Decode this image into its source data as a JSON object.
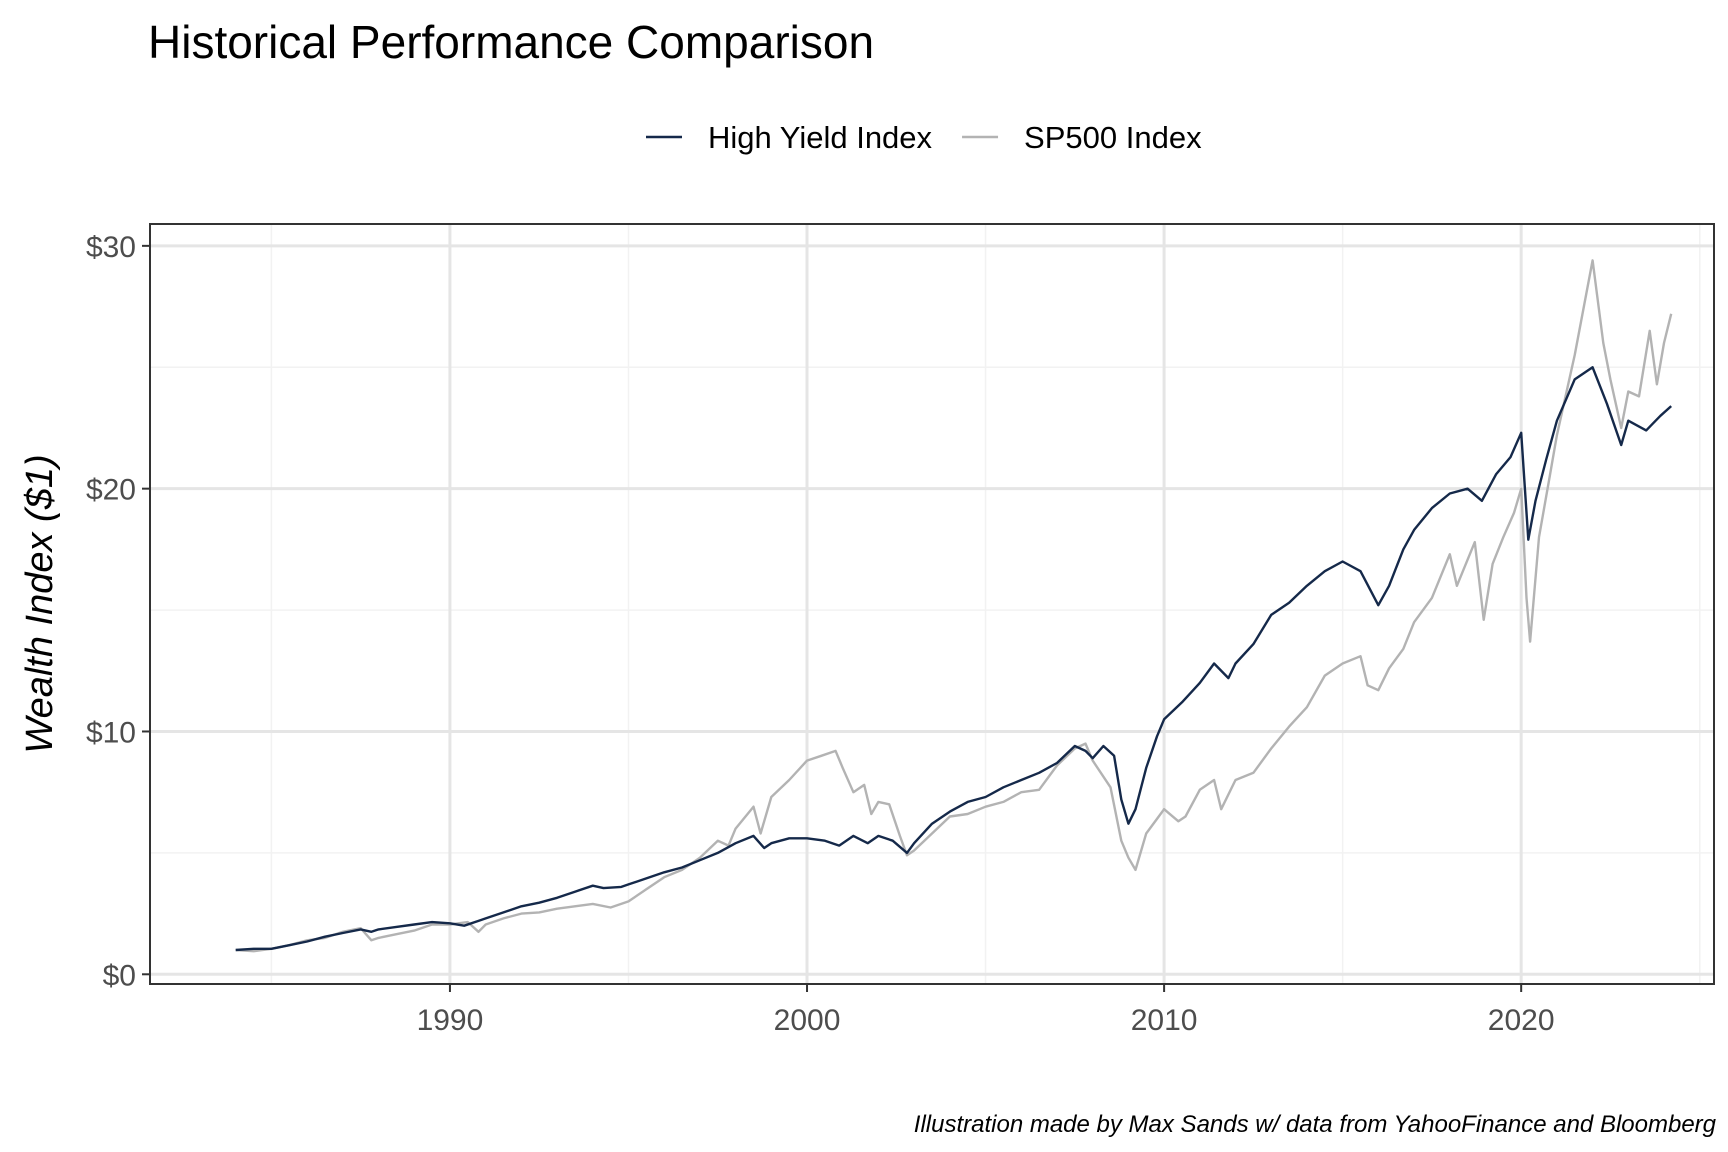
{
  "chart_data": {
    "type": "line",
    "title": "Historical Performance Comparison",
    "xlabel": "",
    "ylabel": "Wealth Index ($1)",
    "caption": "Illustration made by Max Sands w/ data from YahooFinance and Bloomberg",
    "xlim": [
      1981.6,
      2025.4
    ],
    "ylim": [
      -0.4,
      30.9
    ],
    "x_ticks": [
      {
        "value": 1990,
        "label": "1990"
      },
      {
        "value": 2000,
        "label": "2000"
      },
      {
        "value": 2010,
        "label": "2010"
      },
      {
        "value": 2020,
        "label": "2020"
      }
    ],
    "y_ticks": [
      {
        "value": 0,
        "label": "$0"
      },
      {
        "value": 10,
        "label": "$10"
      },
      {
        "value": 20,
        "label": "$20"
      },
      {
        "value": 30,
        "label": "$30"
      }
    ],
    "grid": true,
    "legend_position": "top",
    "series": [
      {
        "name": "High Yield Index",
        "color": "#15294a",
        "points": [
          [
            1984.0,
            1.0
          ],
          [
            1984.5,
            1.05
          ],
          [
            1985.0,
            1.05
          ],
          [
            1985.5,
            1.2
          ],
          [
            1986.0,
            1.35
          ],
          [
            1986.5,
            1.55
          ],
          [
            1987.0,
            1.7
          ],
          [
            1987.5,
            1.85
          ],
          [
            1987.8,
            1.75
          ],
          [
            1988.0,
            1.85
          ],
          [
            1988.5,
            1.95
          ],
          [
            1989.0,
            2.05
          ],
          [
            1989.5,
            2.15
          ],
          [
            1990.0,
            2.1
          ],
          [
            1990.4,
            2.0
          ],
          [
            1990.8,
            2.2
          ],
          [
            1991.0,
            2.3
          ],
          [
            1991.5,
            2.55
          ],
          [
            1992.0,
            2.8
          ],
          [
            1992.5,
            2.95
          ],
          [
            1993.0,
            3.15
          ],
          [
            1993.5,
            3.4
          ],
          [
            1994.0,
            3.65
          ],
          [
            1994.3,
            3.55
          ],
          [
            1994.8,
            3.6
          ],
          [
            1995.0,
            3.7
          ],
          [
            1995.5,
            3.95
          ],
          [
            1996.0,
            4.2
          ],
          [
            1996.5,
            4.4
          ],
          [
            1997.0,
            4.7
          ],
          [
            1997.5,
            5.0
          ],
          [
            1998.0,
            5.4
          ],
          [
            1998.5,
            5.7
          ],
          [
            1998.8,
            5.2
          ],
          [
            1999.0,
            5.4
          ],
          [
            1999.5,
            5.6
          ],
          [
            2000.0,
            5.6
          ],
          [
            2000.5,
            5.5
          ],
          [
            2000.9,
            5.3
          ],
          [
            2001.3,
            5.7
          ],
          [
            2001.7,
            5.4
          ],
          [
            2002.0,
            5.7
          ],
          [
            2002.4,
            5.5
          ],
          [
            2002.8,
            5.0
          ],
          [
            2003.0,
            5.4
          ],
          [
            2003.5,
            6.2
          ],
          [
            2004.0,
            6.7
          ],
          [
            2004.5,
            7.1
          ],
          [
            2005.0,
            7.3
          ],
          [
            2005.5,
            7.7
          ],
          [
            2006.0,
            8.0
          ],
          [
            2006.5,
            8.3
          ],
          [
            2007.0,
            8.7
          ],
          [
            2007.5,
            9.4
          ],
          [
            2007.8,
            9.2
          ],
          [
            2008.0,
            8.9
          ],
          [
            2008.3,
            9.4
          ],
          [
            2008.6,
            9.0
          ],
          [
            2008.8,
            7.2
          ],
          [
            2009.0,
            6.2
          ],
          [
            2009.2,
            6.8
          ],
          [
            2009.5,
            8.5
          ],
          [
            2009.8,
            9.8
          ],
          [
            2010.0,
            10.5
          ],
          [
            2010.5,
            11.2
          ],
          [
            2011.0,
            12.0
          ],
          [
            2011.4,
            12.8
          ],
          [
            2011.8,
            12.2
          ],
          [
            2012.0,
            12.8
          ],
          [
            2012.5,
            13.6
          ],
          [
            2013.0,
            14.8
          ],
          [
            2013.5,
            15.3
          ],
          [
            2014.0,
            16.0
          ],
          [
            2014.5,
            16.6
          ],
          [
            2015.0,
            17.0
          ],
          [
            2015.5,
            16.6
          ],
          [
            2016.0,
            15.2
          ],
          [
            2016.3,
            16.0
          ],
          [
            2016.7,
            17.5
          ],
          [
            2017.0,
            18.3
          ],
          [
            2017.5,
            19.2
          ],
          [
            2018.0,
            19.8
          ],
          [
            2018.5,
            20.0
          ],
          [
            2018.9,
            19.5
          ],
          [
            2019.3,
            20.6
          ],
          [
            2019.7,
            21.3
          ],
          [
            2020.0,
            22.3
          ],
          [
            2020.2,
            17.9
          ],
          [
            2020.4,
            19.5
          ],
          [
            2020.7,
            21.2
          ],
          [
            2021.0,
            22.8
          ],
          [
            2021.5,
            24.5
          ],
          [
            2022.0,
            25.0
          ],
          [
            2022.4,
            23.5
          ],
          [
            2022.8,
            21.8
          ],
          [
            2023.0,
            22.8
          ],
          [
            2023.5,
            22.4
          ],
          [
            2023.9,
            23.0
          ],
          [
            2024.2,
            23.4
          ]
        ]
      },
      {
        "name": "SP500 Index",
        "color": "#b3b3b3",
        "points": [
          [
            1984.0,
            1.0
          ],
          [
            1984.5,
            0.95
          ],
          [
            1985.0,
            1.05
          ],
          [
            1985.5,
            1.2
          ],
          [
            1986.0,
            1.4
          ],
          [
            1986.5,
            1.5
          ],
          [
            1987.0,
            1.75
          ],
          [
            1987.5,
            1.9
          ],
          [
            1987.8,
            1.4
          ],
          [
            1988.0,
            1.5
          ],
          [
            1988.5,
            1.65
          ],
          [
            1989.0,
            1.8
          ],
          [
            1989.5,
            2.05
          ],
          [
            1990.0,
            2.05
          ],
          [
            1990.5,
            2.15
          ],
          [
            1990.8,
            1.75
          ],
          [
            1991.0,
            2.05
          ],
          [
            1991.5,
            2.3
          ],
          [
            1992.0,
            2.5
          ],
          [
            1992.5,
            2.55
          ],
          [
            1993.0,
            2.7
          ],
          [
            1993.5,
            2.8
          ],
          [
            1994.0,
            2.9
          ],
          [
            1994.5,
            2.75
          ],
          [
            1995.0,
            3.0
          ],
          [
            1995.5,
            3.5
          ],
          [
            1996.0,
            4.0
          ],
          [
            1996.5,
            4.3
          ],
          [
            1997.0,
            4.8
          ],
          [
            1997.5,
            5.5
          ],
          [
            1997.8,
            5.3
          ],
          [
            1998.0,
            6.0
          ],
          [
            1998.5,
            6.9
          ],
          [
            1998.7,
            5.8
          ],
          [
            1999.0,
            7.3
          ],
          [
            1999.5,
            8.0
          ],
          [
            2000.0,
            8.8
          ],
          [
            2000.4,
            9.0
          ],
          [
            2000.8,
            9.2
          ],
          [
            2001.0,
            8.5
          ],
          [
            2001.3,
            7.5
          ],
          [
            2001.6,
            7.8
          ],
          [
            2001.8,
            6.6
          ],
          [
            2002.0,
            7.1
          ],
          [
            2002.3,
            7.0
          ],
          [
            2002.6,
            5.7
          ],
          [
            2002.8,
            4.9
          ],
          [
            2003.0,
            5.1
          ],
          [
            2003.5,
            5.8
          ],
          [
            2004.0,
            6.5
          ],
          [
            2004.5,
            6.6
          ],
          [
            2005.0,
            6.9
          ],
          [
            2005.5,
            7.1
          ],
          [
            2006.0,
            7.5
          ],
          [
            2006.5,
            7.6
          ],
          [
            2007.0,
            8.6
          ],
          [
            2007.5,
            9.3
          ],
          [
            2007.8,
            9.5
          ],
          [
            2008.0,
            8.8
          ],
          [
            2008.5,
            7.7
          ],
          [
            2008.8,
            5.5
          ],
          [
            2009.0,
            4.8
          ],
          [
            2009.2,
            4.3
          ],
          [
            2009.5,
            5.8
          ],
          [
            2009.8,
            6.4
          ],
          [
            2010.0,
            6.8
          ],
          [
            2010.4,
            6.3
          ],
          [
            2010.6,
            6.5
          ],
          [
            2011.0,
            7.6
          ],
          [
            2011.4,
            8.0
          ],
          [
            2011.6,
            6.8
          ],
          [
            2012.0,
            8.0
          ],
          [
            2012.5,
            8.3
          ],
          [
            2013.0,
            9.3
          ],
          [
            2013.5,
            10.2
          ],
          [
            2014.0,
            11.0
          ],
          [
            2014.5,
            12.3
          ],
          [
            2015.0,
            12.8
          ],
          [
            2015.5,
            13.1
          ],
          [
            2015.7,
            11.9
          ],
          [
            2016.0,
            11.7
          ],
          [
            2016.3,
            12.6
          ],
          [
            2016.7,
            13.4
          ],
          [
            2017.0,
            14.5
          ],
          [
            2017.5,
            15.5
          ],
          [
            2018.0,
            17.3
          ],
          [
            2018.2,
            16.0
          ],
          [
            2018.7,
            17.8
          ],
          [
            2018.95,
            14.6
          ],
          [
            2019.2,
            16.9
          ],
          [
            2019.5,
            18.0
          ],
          [
            2019.8,
            19.0
          ],
          [
            2020.0,
            20.0
          ],
          [
            2020.15,
            15.5
          ],
          [
            2020.25,
            13.7
          ],
          [
            2020.5,
            18.0
          ],
          [
            2020.8,
            20.5
          ],
          [
            2021.0,
            22.2
          ],
          [
            2021.5,
            25.5
          ],
          [
            2022.0,
            29.4
          ],
          [
            2022.3,
            26.0
          ],
          [
            2022.5,
            24.5
          ],
          [
            2022.8,
            22.5
          ],
          [
            2023.0,
            24.0
          ],
          [
            2023.3,
            23.8
          ],
          [
            2023.6,
            26.5
          ],
          [
            2023.8,
            24.3
          ],
          [
            2024.0,
            26.0
          ],
          [
            2024.2,
            27.2
          ]
        ]
      }
    ]
  }
}
